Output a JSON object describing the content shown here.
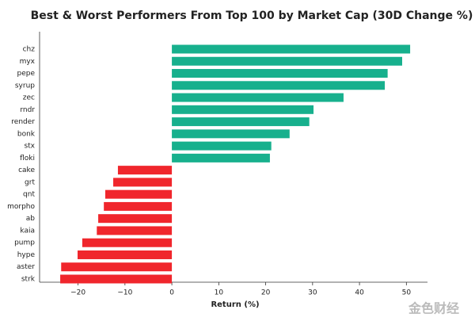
{
  "chart_data": {
    "type": "hbar",
    "title": "Best & Worst Performers From Top 100 by Market Cap  (30D Change %)",
    "x_label": "Return (%)",
    "watermark": "金色财经",
    "categories": [
      "chz",
      "myx",
      "pepe",
      "syrup",
      "zec",
      "rndr",
      "render",
      "bonk",
      "stx",
      "floki",
      "cake",
      "grt",
      "qnt",
      "morpho",
      "ab",
      "kaia",
      "pump",
      "hype",
      "aster",
      "strk"
    ],
    "values": [
      50.8,
      49.1,
      46,
      45.4,
      36.6,
      30.2,
      29.3,
      25.1,
      21.2,
      20.9,
      -11.5,
      -12.5,
      -14.2,
      -14.5,
      -15.7,
      -16,
      -19.1,
      -20.1,
      -23.6,
      -23.8
    ],
    "positive_color": "#17b08d",
    "negative_color": "#f0262c",
    "xlim": [
      -28.2,
      54.5
    ],
    "xticks": [
      {
        "value": -20,
        "label": "−20"
      },
      {
        "value": -10,
        "label": "−10"
      },
      0,
      10,
      20,
      30,
      40,
      50
    ]
  }
}
